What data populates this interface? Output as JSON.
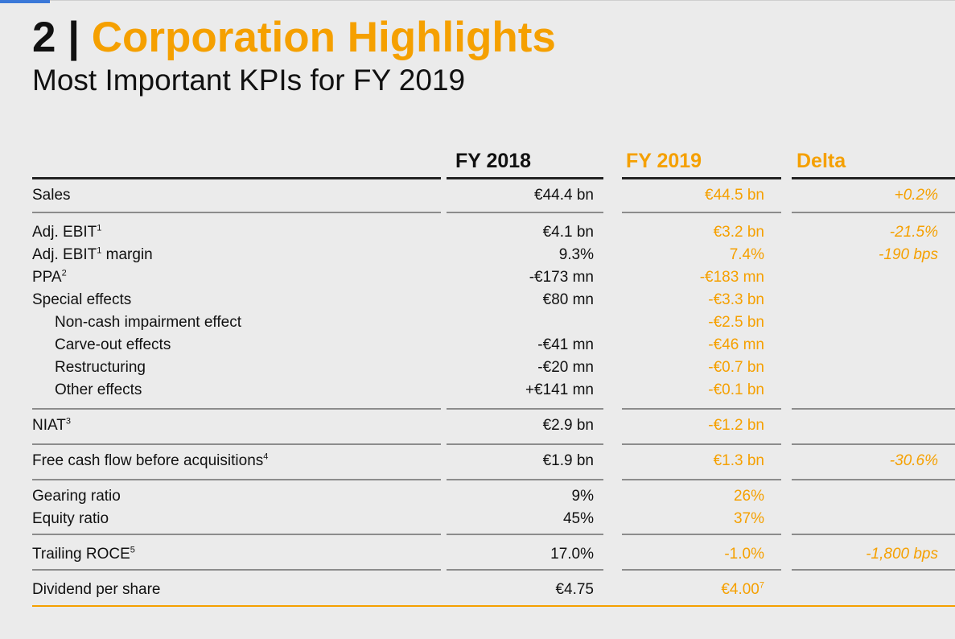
{
  "slide": {
    "section_number": "2",
    "separator": " | ",
    "title": "Corporation Highlights",
    "subtitle": "Most Important KPIs for FY 2019"
  },
  "colors": {
    "accent": "#f5a000",
    "text": "#111111",
    "background": "#ebebeb"
  },
  "table": {
    "headers": {
      "fy2018": "FY 2018",
      "fy2019": "FY 2019",
      "delta": "Delta"
    },
    "rows": [
      {
        "label": "Sales",
        "fy2018": "€44.4 bn",
        "fy2019": "€44.5 bn",
        "delta": "+0.2%"
      },
      {
        "label": "Adj. EBIT",
        "sup": "1",
        "fy2018": "€4.1 bn",
        "fy2019": "€3.2 bn",
        "delta": "-21.5%"
      },
      {
        "label": "Adj. EBIT",
        "sup": "1",
        "label_suffix": " margin",
        "fy2018": "9.3%",
        "fy2019": "7.4%",
        "delta": "-190 bps"
      },
      {
        "label": "PPA",
        "sup": "2",
        "fy2018": "-€173 mn",
        "fy2019": "-€183 mn",
        "delta": ""
      },
      {
        "label": "Special effects",
        "fy2018": "€80 mn",
        "fy2019": "-€3.3 bn",
        "delta": ""
      },
      {
        "label": "Non-cash impairment effect",
        "fy2018": "",
        "fy2019": "-€2.5 bn",
        "delta": ""
      },
      {
        "label": "Carve-out effects",
        "fy2018": "-€41 mn",
        "fy2019": "-€46 mn",
        "delta": ""
      },
      {
        "label": "Restructuring",
        "fy2018": "-€20 mn",
        "fy2019": "-€0.7 bn",
        "delta": ""
      },
      {
        "label": "Other effects",
        "fy2018": "+€141 mn",
        "fy2019": "-€0.1 bn",
        "delta": ""
      },
      {
        "label": "NIAT",
        "sup": "3",
        "fy2018": "€2.9 bn",
        "fy2019": "-€1.2 bn",
        "delta": ""
      },
      {
        "label": "Free cash flow before acquisitions",
        "sup": "4",
        "fy2018": "€1.9 bn",
        "fy2019": "€1.3 bn",
        "delta": "-30.6%"
      },
      {
        "label": "Gearing ratio",
        "fy2018": "9%",
        "fy2019": "26%",
        "delta": ""
      },
      {
        "label": "Equity ratio",
        "fy2018": "45%",
        "fy2019": "37%",
        "delta": ""
      },
      {
        "label": "Trailing ROCE",
        "sup": "5",
        "fy2018": "17.0%",
        "fy2019": "-1.0%",
        "delta": "-1,800 bps"
      },
      {
        "label": "Dividend per share",
        "fy2018": "€4.75",
        "fy2019": "€4.00",
        "fy2019_sup": "7",
        "delta": ""
      }
    ]
  }
}
